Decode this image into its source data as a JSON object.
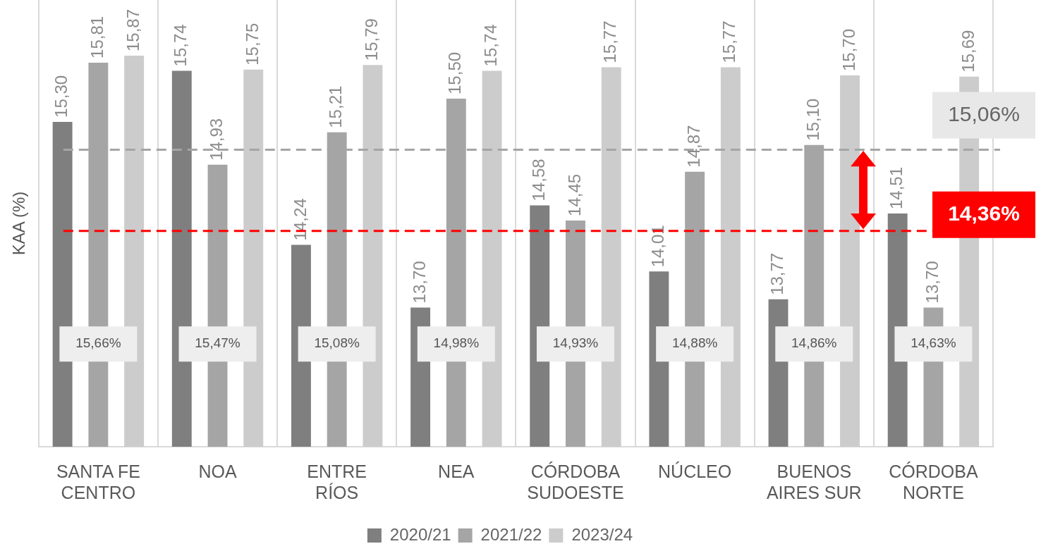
{
  "chart_data": {
    "type": "bar",
    "ylabel": "KAA (%)",
    "categories": [
      "SANTA FE\nCENTRO",
      "NOA",
      "ENTRE\nRÍOS",
      "NEA",
      "CÓRDOBA\nSUDOESTE",
      "NÚCLEO",
      "BUENOS\nAIRES SUR",
      "CÓRDOBA\nNORTE"
    ],
    "series": [
      {
        "name": "2020/21",
        "color": "#7f7f7f",
        "values": [
          15.3,
          15.74,
          14.24,
          13.7,
          14.58,
          14.01,
          13.77,
          14.51
        ],
        "value_labels": [
          "15,30",
          "15,74",
          "14,24",
          "13,70",
          "14,58",
          "14,01",
          "13,77",
          "14,51"
        ]
      },
      {
        "name": "2021/22",
        "color": "#a5a5a5",
        "values": [
          15.81,
          14.93,
          15.21,
          15.5,
          14.45,
          14.87,
          15.1,
          13.7
        ],
        "value_labels": [
          "15,81",
          "14,93",
          "15,21",
          "15,50",
          "14,45",
          "14,87",
          "15,10",
          "13,70"
        ]
      },
      {
        "name": "2023/24",
        "color": "#cccccc",
        "values": [
          15.87,
          15.75,
          15.79,
          15.74,
          15.77,
          15.77,
          15.7,
          15.69
        ],
        "value_labels": [
          "15,87",
          "15,75",
          "15,79",
          "15,74",
          "15,77",
          "15,77",
          "15,70",
          "15,69"
        ]
      }
    ],
    "ylim": [
      12.5,
      16.35
    ],
    "tick_labels": "x",
    "grid": "x",
    "legend": "bottom",
    "ref_lines": [
      {
        "axis": "y",
        "value": 15.06,
        "label": "15,06%",
        "color": "#a5a5a5",
        "line_style": "dashed"
      },
      {
        "axis": "y",
        "value": 14.36,
        "label": "14,36%",
        "color": "#ff0000",
        "line_style": "dashed"
      }
    ],
    "annotations": [
      "15,66%",
      "15,47%",
      "15,08%",
      "14,98%",
      "14,93%",
      "14,88%",
      "14,86%",
      "14,63%"
    ]
  }
}
